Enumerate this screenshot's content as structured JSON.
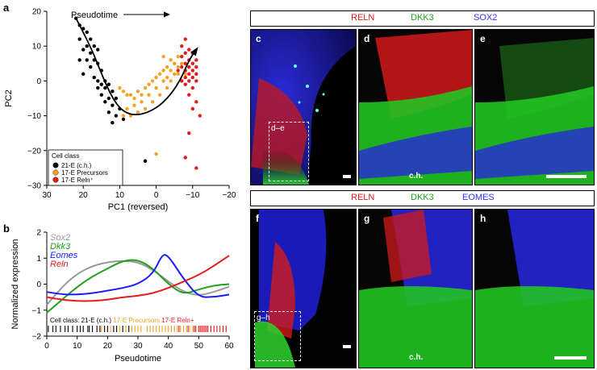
{
  "panel_a": {
    "letter": "a",
    "pseudotime_label": "Pseudotime",
    "legend_title": "Cell class",
    "legend": [
      {
        "label": "21-E (c.h.)",
        "color": "#000000"
      },
      {
        "label": "17-E Precursors",
        "color": "#f5a124"
      },
      {
        "label": "17-E Reln⁺",
        "color": "#e41b1b"
      }
    ]
  },
  "panel_b": {
    "letter": "b",
    "series_labels": [
      {
        "label": "Sox2",
        "color": "#9a9a9a"
      },
      {
        "label": "Dkk3",
        "color": "#1ea01e"
      },
      {
        "label": "Eomes",
        "color": "#1a1aff"
      },
      {
        "label": "Reln",
        "color": "#e41b1b"
      }
    ],
    "cell_class_prefix": "Cell class: 21-E (c.h.)",
    "cell_class_precursors": "17-E Precursors",
    "cell_class_reln": "17-E Reln+"
  },
  "micrographs": {
    "row1": {
      "reln": "RELN",
      "dkk3": "DKK3",
      "third": "SOX2",
      "third_color": "#3333ff",
      "panels": [
        "c",
        "d",
        "e"
      ],
      "box_label": "d–e",
      "region_label": "c.h."
    },
    "row2": {
      "reln": "RELN",
      "dkk3": "DKK3",
      "third": "EOMES",
      "third_color": "#3333ff",
      "panels": [
        "f",
        "g",
        "h"
      ],
      "box_label": "g–h",
      "region_label": "c.h."
    }
  },
  "chart_data": [
    {
      "type": "scatter",
      "xlabel": "PC1 (reversed)",
      "ylabel": "PC2",
      "xlim": [
        30,
        -20
      ],
      "ylim": [
        -30,
        20
      ],
      "xticks": [
        30,
        20,
        10,
        0,
        -10,
        -20
      ],
      "yticks": [
        20,
        10,
        0,
        -10,
        -20,
        -30
      ],
      "series": [
        {
          "name": "21-E (c.h.)",
          "color": "#000000",
          "points": [
            [
              22,
              18
            ],
            [
              21,
              16
            ],
            [
              20,
              15
            ],
            [
              19,
              14
            ],
            [
              21,
              12
            ],
            [
              18,
              12
            ],
            [
              19,
              10
            ],
            [
              17,
              10
            ],
            [
              20,
              9
            ],
            [
              16,
              9
            ],
            [
              18,
              8
            ],
            [
              21,
              6
            ],
            [
              19,
              6
            ],
            [
              17,
              6
            ],
            [
              16,
              5
            ],
            [
              18,
              4
            ],
            [
              15,
              3
            ],
            [
              20,
              2
            ],
            [
              17,
              1
            ],
            [
              14,
              0
            ],
            [
              16,
              0
            ],
            [
              15,
              -1
            ],
            [
              13,
              -1
            ],
            [
              16,
              -2
            ],
            [
              14,
              -2
            ],
            [
              12,
              -3
            ],
            [
              15,
              -4
            ],
            [
              13,
              -5
            ],
            [
              11,
              -5
            ],
            [
              14,
              -6
            ],
            [
              12,
              -7
            ],
            [
              10,
              -8
            ],
            [
              13,
              -9
            ],
            [
              11,
              -10
            ],
            [
              9,
              -11
            ],
            [
              12,
              -12
            ],
            [
              3,
              -23
            ]
          ]
        },
        {
          "name": "17-E Precursors",
          "color": "#f5a124",
          "points": [
            [
              10,
              -2
            ],
            [
              9,
              -3
            ],
            [
              8,
              -4
            ],
            [
              7,
              -4
            ],
            [
              6,
              -5
            ],
            [
              5,
              -3
            ],
            [
              4,
              -4
            ],
            [
              3,
              -2
            ],
            [
              2,
              -1
            ],
            [
              1,
              0
            ],
            [
              0,
              1
            ],
            [
              -1,
              2
            ],
            [
              -2,
              0
            ],
            [
              -3,
              1
            ],
            [
              -4,
              3
            ],
            [
              -5,
              2
            ],
            [
              -6,
              4
            ],
            [
              -7,
              5
            ],
            [
              -5,
              5
            ],
            [
              -3,
              4
            ],
            [
              -2,
              3
            ],
            [
              0,
              -2
            ],
            [
              2,
              -4
            ],
            [
              4,
              -6
            ],
            [
              6,
              -7
            ],
            [
              8,
              -8
            ],
            [
              9,
              -10
            ],
            [
              7,
              -10
            ],
            [
              5,
              -9
            ],
            [
              3,
              -8
            ],
            [
              1,
              -6
            ],
            [
              -1,
              -4
            ],
            [
              -3,
              -2
            ],
            [
              -4,
              0
            ],
            [
              -6,
              2
            ],
            [
              -7,
              0
            ],
            [
              -8,
              2
            ],
            [
              -4,
              6
            ],
            [
              -2,
              7
            ],
            [
              -6,
              7
            ],
            [
              0,
              -21
            ]
          ]
        },
        {
          "name": "17-E Reln⁺",
          "color": "#e41b1b",
          "points": [
            [
              -8,
              12
            ],
            [
              -7,
              10
            ],
            [
              -9,
              9
            ],
            [
              -8,
              8
            ],
            [
              -10,
              8
            ],
            [
              -7,
              7
            ],
            [
              -9,
              6
            ],
            [
              -11,
              6
            ],
            [
              -8,
              5
            ],
            [
              -10,
              5
            ],
            [
              -7,
              4
            ],
            [
              -9,
              4
            ],
            [
              -11,
              4
            ],
            [
              -8,
              3
            ],
            [
              -10,
              3
            ],
            [
              -6,
              3
            ],
            [
              -9,
              2
            ],
            [
              -11,
              2
            ],
            [
              -8,
              1
            ],
            [
              -10,
              1
            ],
            [
              -7,
              0
            ],
            [
              -9,
              0
            ],
            [
              -11,
              0
            ],
            [
              -8,
              -1
            ],
            [
              -10,
              -2
            ],
            [
              -9,
              -4
            ],
            [
              -11,
              -6
            ],
            [
              -10,
              -8
            ],
            [
              -12,
              -10
            ],
            [
              -9,
              -15
            ],
            [
              -11,
              -25
            ],
            [
              -8,
              -22
            ]
          ]
        }
      ],
      "trajectory": [
        [
          22,
          18
        ],
        [
          18,
          10
        ],
        [
          15,
          2
        ],
        [
          12,
          -5
        ],
        [
          9,
          -9
        ],
        [
          5,
          -10
        ],
        [
          0,
          -8
        ],
        [
          -4,
          -4
        ],
        [
          -7,
          1
        ],
        [
          -9,
          6
        ],
        [
          -11,
          9
        ]
      ]
    },
    {
      "type": "line",
      "xlabel": "Pseudotime",
      "ylabel": "Normalized expression",
      "xlim": [
        0,
        60
      ],
      "ylim": [
        -2,
        2
      ],
      "xticks": [
        0,
        10,
        20,
        30,
        40,
        50,
        60
      ],
      "yticks": [
        2,
        1,
        0,
        -1,
        -2
      ],
      "series": [
        {
          "name": "Sox2",
          "color": "#9a9a9a",
          "x": [
            0,
            5,
            10,
            15,
            20,
            25,
            30,
            35,
            40,
            45,
            50,
            55,
            60
          ],
          "y": [
            -0.8,
            -0.1,
            0.4,
            0.7,
            0.85,
            0.9,
            0.85,
            0.55,
            0.1,
            -0.3,
            -0.45,
            -0.3,
            -0.1
          ]
        },
        {
          "name": "Dkk3",
          "color": "#1ea01e",
          "x": [
            0,
            5,
            10,
            15,
            20,
            25,
            30,
            35,
            40,
            45,
            50,
            55,
            60
          ],
          "y": [
            -1.1,
            -0.6,
            -0.1,
            0.3,
            0.6,
            0.9,
            0.95,
            0.6,
            0.0,
            -0.4,
            -0.2,
            -0.05,
            0.0
          ]
        },
        {
          "name": "Eomes",
          "color": "#1a1aff",
          "x": [
            0,
            5,
            10,
            15,
            20,
            25,
            30,
            35,
            38,
            40,
            45,
            50,
            55,
            60
          ],
          "y": [
            -0.3,
            -0.4,
            -0.4,
            -0.35,
            -0.25,
            -0.15,
            0.0,
            0.4,
            1.15,
            1.1,
            0.2,
            -0.5,
            -0.5,
            -0.4
          ]
        },
        {
          "name": "Reln",
          "color": "#e41b1b",
          "x": [
            0,
            5,
            10,
            15,
            20,
            25,
            30,
            35,
            40,
            45,
            50,
            55,
            60
          ],
          "y": [
            -0.5,
            -0.6,
            -0.65,
            -0.65,
            -0.6,
            -0.5,
            -0.45,
            -0.35,
            -0.15,
            0.1,
            0.35,
            0.7,
            1.1
          ]
        }
      ],
      "cell_class_rug": {
        "21-E (c.h.)": [
          0.5,
          2,
          3,
          4.5,
          6,
          7,
          8.5,
          10,
          11,
          12,
          13.5,
          14,
          15,
          16.5,
          17.5,
          19,
          20,
          22,
          23,
          25,
          27
        ],
        "17-E Precursors": [
          18,
          21,
          24,
          26,
          28,
          29,
          30,
          31,
          33,
          34,
          35,
          36,
          37,
          38,
          39,
          40,
          41,
          42,
          43,
          44,
          45,
          46,
          47,
          48
        ],
        "17-E Reln+": [
          43.5,
          46.5,
          48.5,
          49,
          50,
          50.5,
          51,
          51.5,
          52,
          52.5,
          53,
          54,
          55,
          56,
          57,
          58,
          59
        ]
      }
    }
  ]
}
